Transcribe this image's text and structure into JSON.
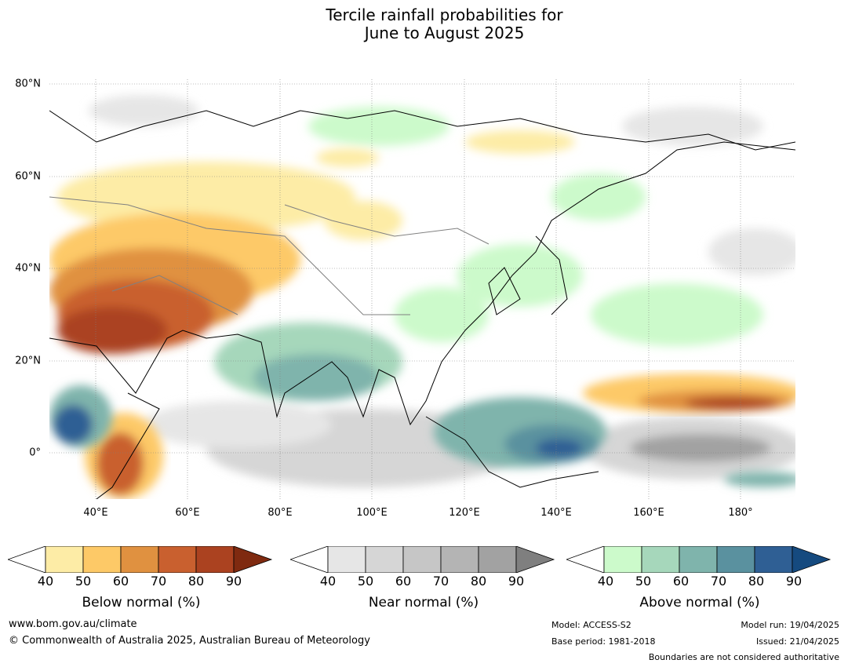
{
  "title": {
    "line1": "Tercile rainfall probabilities for",
    "line2": "June to August 2025"
  },
  "map": {
    "lat_labels": [
      "80°N",
      "60°N",
      "40°N",
      "20°N",
      "0°"
    ],
    "lon_labels": [
      "40°E",
      "60°E",
      "80°E",
      "100°E",
      "120°E",
      "140°E",
      "160°E",
      "180°"
    ]
  },
  "legends": {
    "below": {
      "title": "Below normal (%)",
      "ticks": [
        "40",
        "50",
        "60",
        "70",
        "80",
        "90"
      ],
      "colors": [
        "#ffffff",
        "#fdeca6",
        "#fdc967",
        "#e09140",
        "#c9602f",
        "#ab4220",
        "#7f2a10"
      ]
    },
    "near": {
      "title": "Near normal (%)",
      "ticks": [
        "40",
        "50",
        "60",
        "70",
        "80",
        "90"
      ],
      "colors": [
        "#ffffff",
        "#e6e6e6",
        "#d6d6d6",
        "#c6c6c6",
        "#b4b4b4",
        "#a2a2a2",
        "#7f7f7f"
      ]
    },
    "above": {
      "title": "Above normal (%)",
      "ticks": [
        "40",
        "50",
        "60",
        "70",
        "80",
        "90"
      ],
      "colors": [
        "#ffffff",
        "#ccfacb",
        "#a6d7bb",
        "#7fb4ac",
        "#5a919f",
        "#2f5f94",
        "#154a7f"
      ]
    }
  },
  "footer": {
    "website": "www.bom.gov.au/climate",
    "copyright": "© Commonwealth of Australia 2025, Australian Bureau of Meteorology",
    "model": "Model: ACCESS-S2",
    "base_period": "Base period: 1981-2018",
    "model_run": "Model run: 19/04/2025",
    "issued": "Issued: 21/04/2025",
    "boundaries": "Boundaries are not considered authoritative"
  }
}
